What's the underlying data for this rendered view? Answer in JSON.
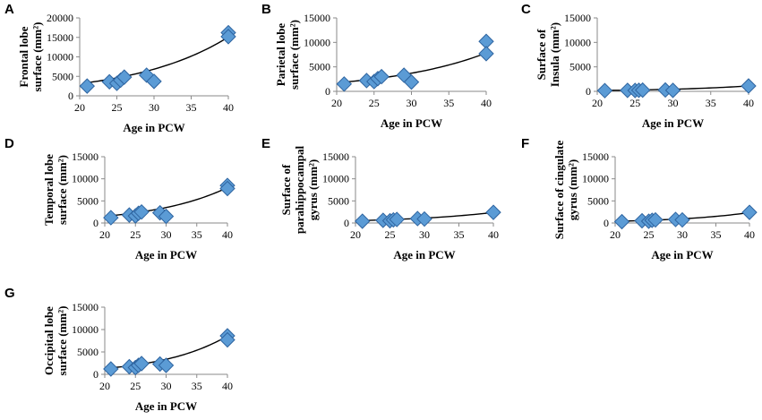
{
  "figure": {
    "panel_count": 7
  },
  "chart_data": [
    {
      "panel": "A",
      "type": "scatter",
      "title": "",
      "xlabel": "Age in PCW",
      "ylabel": [
        "Frontal lobe",
        "surface (mm²)"
      ],
      "xlim": [
        20,
        40
      ],
      "ylim": [
        0,
        20000
      ],
      "xticks": [
        "20",
        "25",
        "30",
        "35",
        "40"
      ],
      "yticks": [
        "0",
        "5000",
        "10000",
        "15000",
        "20000"
      ],
      "x": [
        21,
        24,
        25,
        25.5,
        26,
        29,
        30,
        40,
        40
      ],
      "y": [
        2500,
        3600,
        3200,
        4000,
        4800,
        5300,
        3700,
        16200,
        15200
      ],
      "trendline": {
        "type": "exponential",
        "a": 640,
        "b": 0.079
      }
    },
    {
      "panel": "B",
      "type": "scatter",
      "title": "",
      "xlabel": "Age in PCW",
      "ylabel": [
        "Parietal lobe",
        "surface (mm²)"
      ],
      "xlim": [
        20,
        40
      ],
      "ylim": [
        0,
        15000
      ],
      "xticks": [
        "20",
        "25",
        "30",
        "35",
        "40"
      ],
      "yticks": [
        "0",
        "5000",
        "10000",
        "15000"
      ],
      "x": [
        21,
        24,
        25,
        25.5,
        26,
        29,
        30,
        40,
        40
      ],
      "y": [
        1500,
        2200,
        2000,
        2600,
        3000,
        3300,
        1900,
        10200,
        7700
      ],
      "trendline": {
        "type": "exponential",
        "a": 390,
        "b": 0.075
      }
    },
    {
      "panel": "C",
      "type": "scatter",
      "title": "",
      "xlabel": "Age in PCW",
      "ylabel": [
        "Surface of",
        "Insula (mm²)"
      ],
      "xlim": [
        20,
        40
      ],
      "ylim": [
        0,
        15000
      ],
      "xticks": [
        "20",
        "25",
        "30",
        "35",
        "40"
      ],
      "yticks": [
        "0",
        "5000",
        "10000",
        "15000"
      ],
      "x": [
        21,
        24,
        25,
        25.5,
        26,
        29,
        30,
        40
      ],
      "y": [
        150,
        200,
        180,
        220,
        250,
        280,
        200,
        1100
      ],
      "trendline": {
        "type": "exponential",
        "a": 26,
        "b": 0.094
      }
    },
    {
      "panel": "D",
      "type": "scatter",
      "title": "",
      "xlabel": "Age in PCW",
      "ylabel": [
        "Temporal lobe",
        "surface (mm²)"
      ],
      "xlim": [
        20,
        40
      ],
      "ylim": [
        0,
        15000
      ],
      "xticks": [
        "20",
        "25",
        "30",
        "35",
        "40"
      ],
      "yticks": [
        "0",
        "5000",
        "10000",
        "15000"
      ],
      "x": [
        21,
        24,
        25,
        25.5,
        26,
        29,
        30,
        40,
        40
      ],
      "y": [
        1200,
        1800,
        1600,
        2200,
        2500,
        2300,
        1500,
        8500,
        7800
      ],
      "trendline": {
        "type": "exponential",
        "a": 290,
        "b": 0.083
      }
    },
    {
      "panel": "E",
      "type": "scatter",
      "title": "",
      "xlabel": "Age in PCW",
      "ylabel": [
        "Surface of",
        "parahippocampal",
        "gyrus (mm²)"
      ],
      "xlim": [
        20,
        40
      ],
      "ylim": [
        0,
        15000
      ],
      "xticks": [
        "20",
        "25",
        "30",
        "35",
        "40"
      ],
      "yticks": [
        "0",
        "5000",
        "10000",
        "15000"
      ],
      "x": [
        21,
        24,
        25,
        25.5,
        26,
        29,
        30,
        40
      ],
      "y": [
        400,
        600,
        500,
        700,
        800,
        1000,
        900,
        2400
      ],
      "trendline": {
        "type": "exponential",
        "a": 110,
        "b": 0.077
      }
    },
    {
      "panel": "F",
      "type": "scatter",
      "title": "",
      "xlabel": "Age in PCW",
      "ylabel": [
        "Surface of cingulate",
        "gyrus (mm²)"
      ],
      "xlim": [
        20,
        40
      ],
      "ylim": [
        0,
        15000
      ],
      "xticks": [
        "20",
        "25",
        "30",
        "35",
        "40"
      ],
      "yticks": [
        "0",
        "5000",
        "10000",
        "15000"
      ],
      "x": [
        21,
        24,
        25,
        25.5,
        26,
        29,
        30,
        40
      ],
      "y": [
        300,
        500,
        400,
        600,
        700,
        800,
        700,
        2400
      ],
      "trendline": {
        "type": "exponential",
        "a": 62,
        "b": 0.091
      }
    },
    {
      "panel": "G",
      "type": "scatter",
      "title": "",
      "xlabel": "Age in PCW",
      "ylabel": [
        "Occipital lobe",
        "surface (mm²)"
      ],
      "xlim": [
        20,
        40
      ],
      "ylim": [
        0,
        15000
      ],
      "xticks": [
        "20",
        "25",
        "30",
        "35",
        "40"
      ],
      "yticks": [
        "0",
        "5000",
        "10000",
        "15000"
      ],
      "x": [
        21,
        24,
        25,
        25.5,
        26,
        29,
        30,
        40,
        40
      ],
      "y": [
        1200,
        1700,
        1500,
        2000,
        2400,
        2300,
        2000,
        8600,
        7700
      ],
      "trendline": {
        "type": "exponential",
        "a": 200,
        "b": 0.094
      }
    }
  ]
}
